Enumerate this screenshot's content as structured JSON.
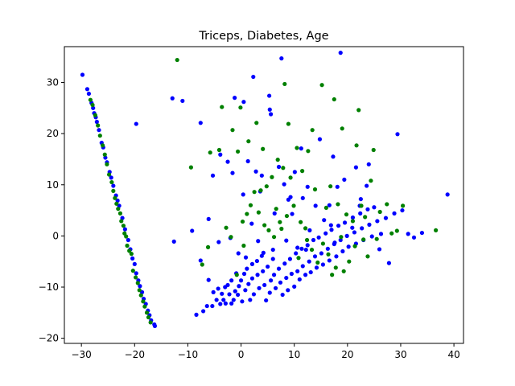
{
  "chart_data": {
    "type": "scatter",
    "title": "Triceps, Diabetes, Age",
    "xlabel": "",
    "ylabel": "",
    "xlim": [
      -33.2,
      41.8
    ],
    "ylim": [
      -21.0,
      37.0
    ],
    "xticks": [
      -30,
      -20,
      -10,
      0,
      10,
      20,
      30,
      40
    ],
    "yticks": [
      -20,
      -10,
      0,
      10,
      20,
      30
    ],
    "grid": false,
    "legend": "none",
    "colors": {
      "blue": "#0000ff",
      "green": "#008000"
    },
    "series": [
      {
        "color": "#0000ff",
        "points": [
          [
            -29.8,
            31.5
          ],
          [
            -28.9,
            28.7
          ],
          [
            -28.6,
            27.8
          ],
          [
            -28.1,
            26.0
          ],
          [
            -27.8,
            25.0
          ],
          [
            -27.6,
            24.0
          ],
          [
            -27.3,
            23.2
          ],
          [
            -27.1,
            22.3
          ],
          [
            -26.7,
            20.7
          ],
          [
            -26.2,
            18.2
          ],
          [
            -25.9,
            17.3
          ],
          [
            -25.5,
            15.3
          ],
          [
            -25.2,
            14.4
          ],
          [
            -24.7,
            12.5
          ],
          [
            -24.4,
            11.4
          ],
          [
            -24.0,
            9.8
          ],
          [
            -23.5,
            7.9
          ],
          [
            -23.2,
            6.9
          ],
          [
            -22.9,
            5.9
          ],
          [
            -22.3,
            3.5
          ],
          [
            -21.8,
            1.3
          ],
          [
            -21.2,
            -0.8
          ],
          [
            -20.8,
            -2.6
          ],
          [
            -20.4,
            -4.4
          ],
          [
            -20.0,
            -5.5
          ],
          [
            -19.7,
            -7.3
          ],
          [
            -19.3,
            -8.7
          ],
          [
            -19.0,
            -9.8
          ],
          [
            -18.6,
            -11.0
          ],
          [
            -18.3,
            -12.3
          ],
          [
            -17.9,
            -13.3
          ],
          [
            -17.5,
            -14.6
          ],
          [
            -17.2,
            -15.5
          ],
          [
            -16.9,
            -16.5
          ],
          [
            -16.3,
            -17.3
          ],
          [
            -16.2,
            -17.6
          ],
          [
            -19.7,
            21.9
          ],
          [
            -12.9,
            26.9
          ],
          [
            -11.0,
            26.4
          ],
          [
            -12.6,
            -1.1
          ],
          [
            -9.2,
            1.0
          ],
          [
            -8.4,
            -15.4
          ],
          [
            -7.6,
            -4.8
          ],
          [
            -7.1,
            -14.7
          ],
          [
            -6.4,
            -13.7
          ],
          [
            -6.1,
            -8.6
          ],
          [
            -5.2,
            -11.0
          ],
          [
            -5.4,
            -13.7
          ],
          [
            -4.6,
            -12.5
          ],
          [
            -4.3,
            -10.3
          ],
          [
            -3.6,
            -11.3
          ],
          [
            -3.9,
            -13.3
          ],
          [
            -3.0,
            -10.0
          ],
          [
            -3.3,
            -12.5
          ],
          [
            -2.5,
            -9.6
          ],
          [
            -2.9,
            -13.2
          ],
          [
            -2.2,
            -11.4
          ],
          [
            -1.8,
            -8.7
          ],
          [
            -1.8,
            -13.2
          ],
          [
            -1.1,
            -10.8
          ],
          [
            -1.4,
            -12.5
          ],
          [
            -0.9,
            -7.3
          ],
          [
            -0.4,
            -9.8
          ],
          [
            -0.6,
            -11.5
          ],
          [
            0.0,
            -8.7
          ],
          [
            0.2,
            -12.8
          ],
          [
            0.6,
            -7.4
          ],
          [
            0.8,
            -10.6
          ],
          [
            1.1,
            -6.4
          ],
          [
            1.4,
            -9.4
          ],
          [
            1.7,
            -12.5
          ],
          [
            2.1,
            -5.5
          ],
          [
            2.1,
            -8.3
          ],
          [
            2.4,
            -11.4
          ],
          [
            3.0,
            -4.9
          ],
          [
            3.1,
            -7.6
          ],
          [
            3.4,
            -10.2
          ],
          [
            3.9,
            -3.9
          ],
          [
            4.1,
            -6.9
          ],
          [
            4.4,
            -9.6
          ],
          [
            4.7,
            -12.6
          ],
          [
            5.0,
            -6.0
          ],
          [
            5.6,
            -8.7
          ],
          [
            5.4,
            -11.1
          ],
          [
            6.0,
            -4.5
          ],
          [
            6.2,
            -7.6
          ],
          [
            6.5,
            -10.2
          ],
          [
            7.1,
            -6.4
          ],
          [
            7.4,
            -9.1
          ],
          [
            7.8,
            -11.5
          ],
          [
            8.2,
            -5.4
          ],
          [
            8.5,
            -8.2
          ],
          [
            8.8,
            -10.6
          ],
          [
            9.2,
            -4.5
          ],
          [
            9.5,
            -7.4
          ],
          [
            10.0,
            -9.9
          ],
          [
            10.3,
            -3.4
          ],
          [
            10.6,
            -6.9
          ],
          [
            11.0,
            -8.5
          ],
          [
            11.4,
            -2.5
          ],
          [
            11.6,
            -5.9
          ],
          [
            12.1,
            -7.6
          ],
          [
            12.5,
            -1.8
          ],
          [
            12.8,
            -5.0
          ],
          [
            13.1,
            -7.1
          ],
          [
            13.6,
            -0.8
          ],
          [
            13.9,
            -4.0
          ],
          [
            14.2,
            -6.2
          ],
          [
            14.6,
            -0.3
          ],
          [
            15.1,
            -3.4
          ],
          [
            15.4,
            -5.6
          ],
          [
            15.9,
            0.5
          ],
          [
            16.3,
            -2.5
          ],
          [
            16.6,
            -4.8
          ],
          [
            17.0,
            1.2
          ],
          [
            17.5,
            -1.6
          ],
          [
            17.9,
            -4.0
          ],
          [
            18.3,
            2.0
          ],
          [
            18.7,
            -0.8
          ],
          [
            19.1,
            -3.0
          ],
          [
            19.5,
            2.6
          ],
          [
            19.9,
            0.0
          ],
          [
            20.2,
            -2.1
          ],
          [
            21.0,
            3.6
          ],
          [
            21.3,
            0.7
          ],
          [
            21.6,
            -1.5
          ],
          [
            22.4,
            4.4
          ],
          [
            22.7,
            1.5
          ],
          [
            23.0,
            -0.8
          ],
          [
            23.8,
            5.2
          ],
          [
            24.1,
            2.2
          ],
          [
            24.6,
            -0.1
          ],
          [
            25.0,
            5.6
          ],
          [
            25.6,
            2.9
          ],
          [
            26.3,
            0.4
          ],
          [
            27.2,
            3.5
          ],
          [
            27.8,
            -5.3
          ],
          [
            28.8,
            4.4
          ],
          [
            30.3,
            5.0
          ],
          [
            31.4,
            0.4
          ],
          [
            32.5,
            -0.3
          ],
          [
            34.0,
            0.6
          ],
          [
            38.8,
            8.1
          ],
          [
            29.4,
            19.9
          ],
          [
            22.3,
            5.9
          ],
          [
            -7.6,
            22.1
          ],
          [
            -6.1,
            3.3
          ],
          [
            -5.3,
            11.8
          ],
          [
            -4.2,
            -1.2
          ],
          [
            -3.9,
            15.9
          ],
          [
            -2.5,
            14.5
          ],
          [
            -2.0,
            -0.4
          ],
          [
            -1.6,
            12.3
          ],
          [
            -1.2,
            27.0
          ],
          [
            -0.5,
            -3.4
          ],
          [
            0.4,
            8.1
          ],
          [
            0.5,
            26.2
          ],
          [
            0.9,
            -4.2
          ],
          [
            1.3,
            14.6
          ],
          [
            2.0,
            2.4
          ],
          [
            2.3,
            31.1
          ],
          [
            2.8,
            12.6
          ],
          [
            3.2,
            -1.0
          ],
          [
            3.6,
            8.7
          ],
          [
            3.9,
            11.8
          ],
          [
            4.2,
            -3.3
          ],
          [
            5.3,
            27.4
          ],
          [
            5.4,
            24.7
          ],
          [
            5.6,
            23.8
          ],
          [
            6.0,
            -2.7
          ],
          [
            6.3,
            4.4
          ],
          [
            7.1,
            13.5
          ],
          [
            7.6,
            34.7
          ],
          [
            8.1,
            10.1
          ],
          [
            8.5,
            -0.9
          ],
          [
            8.9,
            7.1
          ],
          [
            9.6,
            4.3
          ],
          [
            10.1,
            12.5
          ],
          [
            10.6,
            -2.3
          ],
          [
            11.3,
            17.1
          ],
          [
            11.6,
            7.4
          ],
          [
            12.2,
            -2.7
          ],
          [
            12.5,
            9.6
          ],
          [
            12.9,
            1.1
          ],
          [
            14.0,
            5.9
          ],
          [
            14.8,
            18.9
          ],
          [
            15.6,
            3.1
          ],
          [
            16.6,
            6.0
          ],
          [
            17.3,
            15.5
          ],
          [
            17.6,
            -1.3
          ],
          [
            18.1,
            9.6
          ],
          [
            18.7,
            35.8
          ],
          [
            19.4,
            11.0
          ],
          [
            20.9,
            1.6
          ],
          [
            21.6,
            13.4
          ],
          [
            22.5,
            7.2
          ],
          [
            23.6,
            9.8
          ],
          [
            24.0,
            14.0
          ],
          [
            26.0,
            -2.6
          ],
          [
            16.9,
            2.1
          ],
          [
            9.3,
            7.6
          ]
        ]
      },
      {
        "color": "#008000",
        "points": [
          [
            -28.3,
            26.6
          ],
          [
            -27.9,
            25.6
          ],
          [
            -27.4,
            23.6
          ],
          [
            -26.9,
            21.6
          ],
          [
            -26.5,
            19.6
          ],
          [
            -26.0,
            17.7
          ],
          [
            -25.6,
            15.9
          ],
          [
            -25.2,
            14.0
          ],
          [
            -24.8,
            12.0
          ],
          [
            -24.3,
            10.5
          ],
          [
            -24.0,
            8.8
          ],
          [
            -23.7,
            7.4
          ],
          [
            -23.4,
            6.3
          ],
          [
            -23.1,
            5.3
          ],
          [
            -22.7,
            4.4
          ],
          [
            -22.5,
            2.9
          ],
          [
            -22.1,
            2.0
          ],
          [
            -21.9,
            0.5
          ],
          [
            -21.6,
            -0.1
          ],
          [
            -21.4,
            -1.9
          ],
          [
            -21.0,
            -2.9
          ],
          [
            -20.6,
            -3.5
          ],
          [
            -20.3,
            -6.8
          ],
          [
            -19.8,
            -8.1
          ],
          [
            -19.4,
            -9.2
          ],
          [
            -19.1,
            -10.6
          ],
          [
            -18.8,
            -11.6
          ],
          [
            -18.4,
            -12.8
          ],
          [
            -18.1,
            -13.8
          ],
          [
            -17.7,
            -15.0
          ],
          [
            -17.4,
            -15.9
          ],
          [
            -17.0,
            -16.9
          ],
          [
            -12.0,
            34.4
          ],
          [
            -9.4,
            13.4
          ],
          [
            -7.3,
            -5.6
          ],
          [
            -6.2,
            -2.2
          ],
          [
            -5.8,
            16.3
          ],
          [
            -4.1,
            16.8
          ],
          [
            -3.6,
            25.2
          ],
          [
            -2.8,
            1.6
          ],
          [
            -1.9,
            -0.2
          ],
          [
            -1.6,
            20.7
          ],
          [
            -0.8,
            -7.6
          ],
          [
            -0.6,
            16.5
          ],
          [
            -0.1,
            25.1
          ],
          [
            0.3,
            2.8
          ],
          [
            0.5,
            -1.9
          ],
          [
            1.1,
            4.3
          ],
          [
            1.4,
            18.5
          ],
          [
            1.8,
            6.0
          ],
          [
            2.5,
            8.6
          ],
          [
            2.9,
            22.1
          ],
          [
            3.3,
            4.6
          ],
          [
            3.7,
            8.9
          ],
          [
            4.1,
            17.0
          ],
          [
            4.4,
            2.1
          ],
          [
            4.8,
            9.7
          ],
          [
            5.2,
            1.1
          ],
          [
            5.8,
            11.5
          ],
          [
            6.2,
            -0.2
          ],
          [
            6.6,
            5.3
          ],
          [
            6.9,
            14.9
          ],
          [
            7.3,
            2.7
          ],
          [
            7.6,
            1.4
          ],
          [
            7.9,
            13.3
          ],
          [
            8.2,
            29.7
          ],
          [
            8.6,
            3.9
          ],
          [
            8.9,
            21.9
          ],
          [
            9.3,
            11.4
          ],
          [
            9.9,
            5.9
          ],
          [
            10.5,
            17.2
          ],
          [
            10.8,
            -4.3
          ],
          [
            11.2,
            2.7
          ],
          [
            11.5,
            12.7
          ],
          [
            12.1,
            1.5
          ],
          [
            12.4,
            -0.8
          ],
          [
            12.6,
            16.6
          ],
          [
            13.3,
            -2.7
          ],
          [
            13.4,
            20.7
          ],
          [
            13.9,
            9.1
          ],
          [
            14.4,
            -5.2
          ],
          [
            15.2,
            29.5
          ],
          [
            15.4,
            -1.5
          ],
          [
            16.0,
            5.5
          ],
          [
            16.4,
            -3.6
          ],
          [
            16.8,
            9.7
          ],
          [
            17.1,
            -7.6
          ],
          [
            17.5,
            26.7
          ],
          [
            17.8,
            -6.2
          ],
          [
            18.2,
            6.2
          ],
          [
            18.8,
            -0.2
          ],
          [
            19.0,
            21.0
          ],
          [
            19.3,
            -6.9
          ],
          [
            19.8,
            4.2
          ],
          [
            20.3,
            -5.0
          ],
          [
            21.0,
            2.9
          ],
          [
            21.4,
            -2.0
          ],
          [
            21.7,
            17.7
          ],
          [
            22.1,
            24.6
          ],
          [
            22.6,
            5.9
          ],
          [
            23.0,
            -0.7
          ],
          [
            23.3,
            3.7
          ],
          [
            23.8,
            -4.0
          ],
          [
            24.4,
            10.8
          ],
          [
            24.9,
            16.8
          ],
          [
            25.5,
            -0.6
          ],
          [
            26.1,
            4.7
          ],
          [
            27.4,
            6.2
          ],
          [
            28.3,
            0.5
          ],
          [
            29.3,
            1.0
          ],
          [
            30.4,
            5.9
          ],
          [
            36.6,
            1.1
          ]
        ]
      }
    ]
  }
}
